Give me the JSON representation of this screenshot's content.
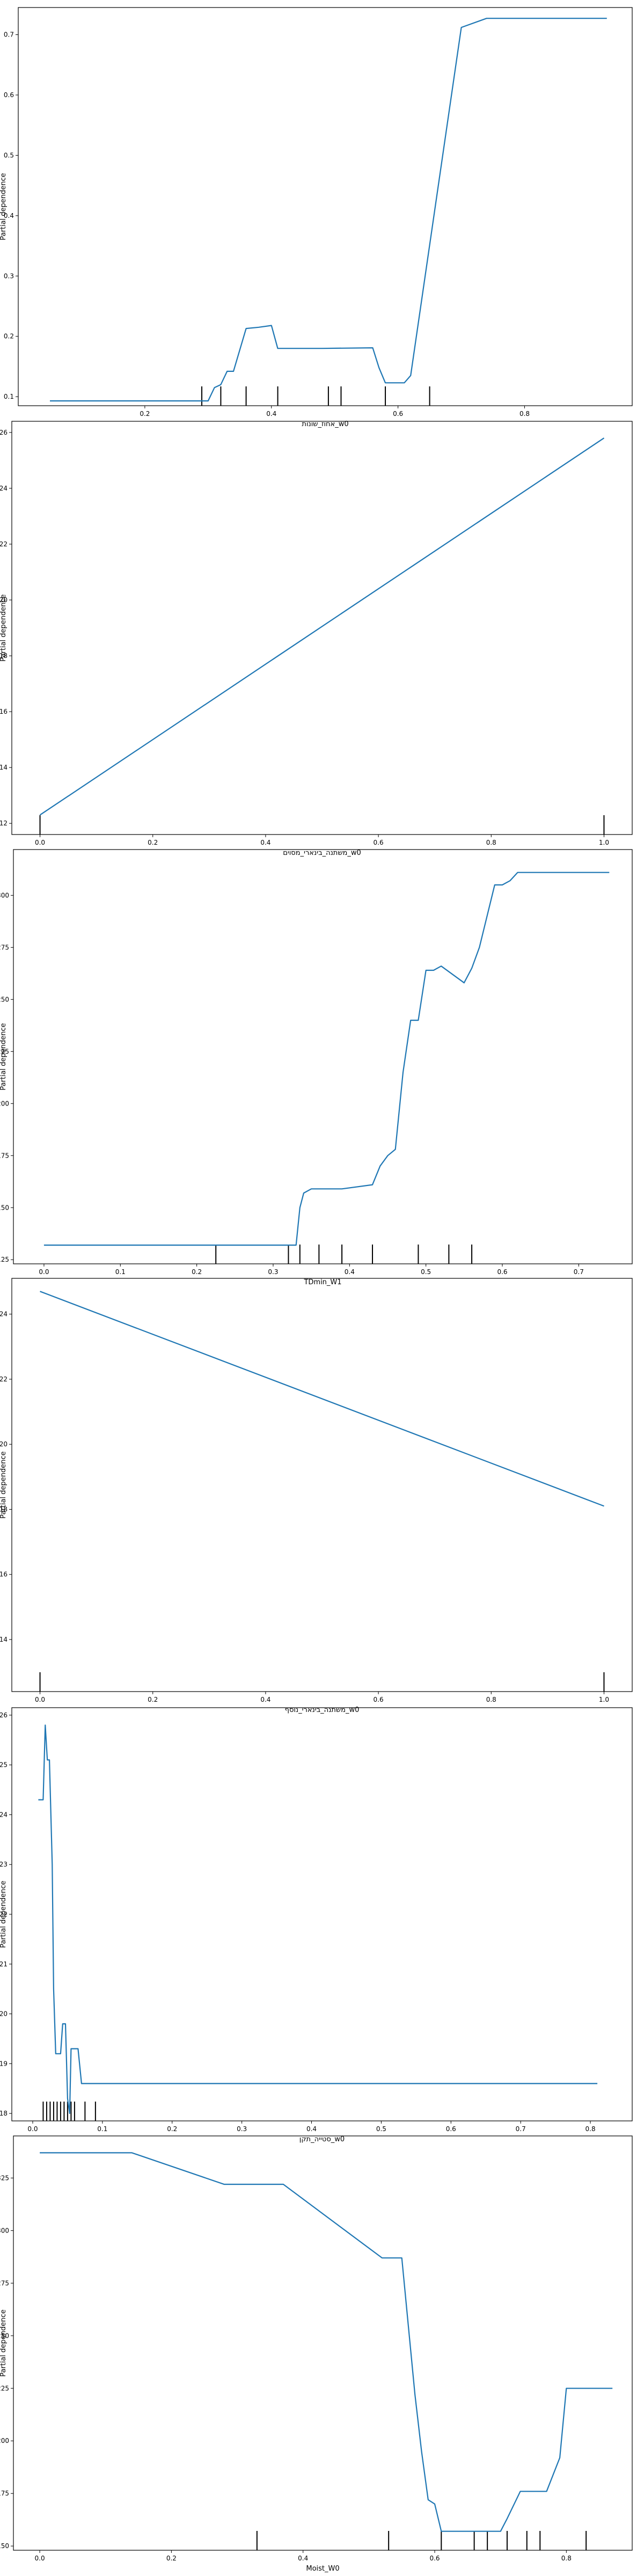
{
  "colors": {
    "line": "#1f77b4",
    "axis": "#000000",
    "rug": "#000000",
    "background": "#ffffff"
  },
  "chart_data": [
    {
      "type": "line",
      "xlabel": "אחוז_שונות_w0",
      "ylabel": "Partial dependence",
      "xlim": [
        0.0,
        0.97
      ],
      "ylim": [
        0.085,
        0.745
      ],
      "xticks": [
        0.2,
        0.4,
        0.6,
        0.8
      ],
      "yticks": [
        0.1,
        0.2,
        0.3,
        0.4,
        0.5,
        0.6,
        0.7
      ],
      "x": [
        0.05,
        0.29,
        0.3,
        0.31,
        0.32,
        0.33,
        0.34,
        0.36,
        0.38,
        0.4,
        0.41,
        0.48,
        0.56,
        0.57,
        0.58,
        0.61,
        0.62,
        0.7,
        0.74,
        0.93
      ],
      "y": [
        0.093,
        0.093,
        0.093,
        0.115,
        0.12,
        0.142,
        0.142,
        0.213,
        0.215,
        0.218,
        0.18,
        0.18,
        0.181,
        0.148,
        0.123,
        0.123,
        0.135,
        0.712,
        0.727,
        0.727
      ],
      "rug": [
        0.29,
        0.32,
        0.36,
        0.41,
        0.49,
        0.51,
        0.58,
        0.65
      ]
    },
    {
      "type": "line",
      "xlabel": "משתנה_בינארי_מסוים_w0",
      "ylabel": "Partial dependence",
      "xlim": [
        -0.05,
        1.05
      ],
      "ylim": [
        0.116,
        0.264
      ],
      "xticks": [
        0.0,
        0.2,
        0.4,
        0.6,
        0.8,
        1.0
      ],
      "yticks": [
        0.12,
        0.14,
        0.16,
        0.18,
        0.2,
        0.22,
        0.24,
        0.26
      ],
      "x": [
        0.0,
        1.0
      ],
      "y": [
        0.123,
        0.258
      ],
      "rug": [
        0.0,
        1.0
      ]
    },
    {
      "type": "line",
      "xlabel": "TDmin_W1",
      "ylabel": "Partial dependence",
      "xlim": [
        -0.04,
        0.77
      ],
      "ylim": [
        0.123,
        0.322
      ],
      "xticks": [
        0.0,
        0.1,
        0.2,
        0.3,
        0.4,
        0.5,
        0.6,
        0.7
      ],
      "yticks": [
        0.125,
        0.15,
        0.175,
        0.2,
        0.225,
        0.25,
        0.275,
        0.3
      ],
      "x": [
        0.0,
        0.33,
        0.335,
        0.34,
        0.35,
        0.39,
        0.43,
        0.44,
        0.45,
        0.46,
        0.47,
        0.48,
        0.49,
        0.5,
        0.51,
        0.52,
        0.55,
        0.56,
        0.57,
        0.59,
        0.6,
        0.61,
        0.62,
        0.74
      ],
      "y": [
        0.132,
        0.132,
        0.15,
        0.157,
        0.159,
        0.159,
        0.161,
        0.17,
        0.175,
        0.178,
        0.215,
        0.24,
        0.24,
        0.264,
        0.264,
        0.266,
        0.258,
        0.265,
        0.275,
        0.305,
        0.305,
        0.307,
        0.311,
        0.311
      ],
      "rug": [
        0.225,
        0.32,
        0.335,
        0.36,
        0.39,
        0.43,
        0.49,
        0.53,
        0.56
      ]
    },
    {
      "type": "line",
      "xlabel": "משתנה_בינארי_נוסף_w0",
      "ylabel": "Partial dependence",
      "xlim": [
        -0.05,
        1.05
      ],
      "ylim": [
        0.124,
        0.251
      ],
      "xticks": [
        0.0,
        0.2,
        0.4,
        0.6,
        0.8,
        1.0
      ],
      "yticks": [
        0.14,
        0.16,
        0.18,
        0.2,
        0.22,
        0.24
      ],
      "x": [
        0.0,
        1.0
      ],
      "y": [
        0.247,
        0.181
      ],
      "rug": [
        0.0,
        1.0
      ]
    },
    {
      "type": "line",
      "xlabel": "סטייה_תקן_w0",
      "ylabel": "Partial dependence",
      "xlim": [
        -0.03,
        0.86
      ],
      "ylim": [
        0.1785,
        0.2615
      ],
      "xticks": [
        0.0,
        0.1,
        0.2,
        0.3,
        0.4,
        0.5,
        0.6,
        0.7,
        0.8
      ],
      "yticks": [
        0.18,
        0.19,
        0.2,
        0.21,
        0.22,
        0.23,
        0.24,
        0.25,
        0.26
      ],
      "x": [
        0.008,
        0.015,
        0.018,
        0.021,
        0.024,
        0.028,
        0.03,
        0.033,
        0.036,
        0.04,
        0.043,
        0.047,
        0.05,
        0.053,
        0.055,
        0.06,
        0.065,
        0.07,
        0.08,
        0.81
      ],
      "y": [
        0.243,
        0.243,
        0.258,
        0.251,
        0.251,
        0.23,
        0.205,
        0.192,
        0.192,
        0.192,
        0.198,
        0.198,
        0.183,
        0.18,
        0.193,
        0.193,
        0.193,
        0.186,
        0.186,
        0.186
      ],
      "rug": [
        0.015,
        0.02,
        0.025,
        0.03,
        0.035,
        0.04,
        0.045,
        0.05,
        0.055,
        0.06,
        0.075,
        0.09
      ]
    },
    {
      "type": "line",
      "xlabel": "Moist_W0",
      "ylabel": "Partial dependence",
      "xlim": [
        -0.04,
        0.9
      ],
      "ylim": [
        0.148,
        0.345
      ],
      "xticks": [
        0.0,
        0.2,
        0.4,
        0.6,
        0.8
      ],
      "yticks": [
        0.15,
        0.175,
        0.2,
        0.225,
        0.25,
        0.275,
        0.3,
        0.325
      ],
      "x": [
        0.0,
        0.14,
        0.28,
        0.37,
        0.52,
        0.55,
        0.57,
        0.58,
        0.59,
        0.6,
        0.61,
        0.62,
        0.7,
        0.71,
        0.73,
        0.76,
        0.77,
        0.79,
        0.8,
        0.87
      ],
      "y": [
        0.337,
        0.337,
        0.322,
        0.322,
        0.287,
        0.287,
        0.222,
        0.195,
        0.172,
        0.17,
        0.157,
        0.157,
        0.157,
        0.163,
        0.176,
        0.176,
        0.176,
        0.192,
        0.225,
        0.225
      ],
      "rug": [
        0.33,
        0.53,
        0.61,
        0.66,
        0.68,
        0.71,
        0.74,
        0.76,
        0.83
      ]
    }
  ]
}
